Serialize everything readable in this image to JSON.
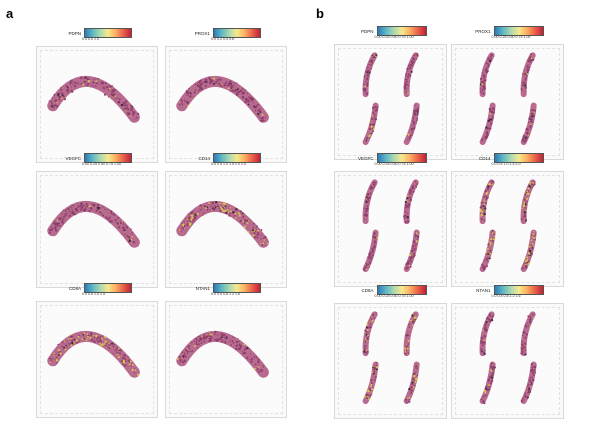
{
  "panels": [
    {
      "label": "a",
      "tiles": [
        {
          "gene": "PDPN",
          "ticks": "0.0   0.5   1.0"
        },
        {
          "gene": "PROX1",
          "ticks": "0.0  0.2  0.4  0.6"
        },
        {
          "gene": "VEGFC",
          "ticks": "0.00 0.25 0.50 0.75 1.00"
        },
        {
          "gene": "CD14",
          "ticks": "0.0 0.5 1.0 1.5 2.0 2.5"
        },
        {
          "gene": "CD8A",
          "ticks": "0.0  0.5  1.0  1.5"
        },
        {
          "gene": "NTAN1",
          "ticks": "0.0 0.4 0.8 1.2 1.6"
        }
      ]
    },
    {
      "label": "b",
      "tiles": [
        {
          "gene": "PDPN",
          "ticks": "0.00 0.25 0.50 0.75 1.00"
        },
        {
          "gene": "PROX1",
          "ticks": "0.00 0.25 0.50 0.75 1.00"
        },
        {
          "gene": "VEGFC",
          "ticks": "0.00 0.25 0.50 0.75 1.00"
        },
        {
          "gene": "CD14",
          "ticks": "0.0 0.5 1.0 1.5 2.0"
        },
        {
          "gene": "CD8A",
          "ticks": "0.00 0.25 0.50 0.75 1.00"
        },
        {
          "gene": "NTAN1",
          "ticks": "0.0 0.4 0.8 1.2 1.6"
        }
      ]
    }
  ],
  "colors": {
    "tissue": "#b86a8f",
    "tissue_dark": "#8c3f6a",
    "speckle_yellow": "#d9c64a",
    "speckle_dark": "#3a2a40"
  }
}
